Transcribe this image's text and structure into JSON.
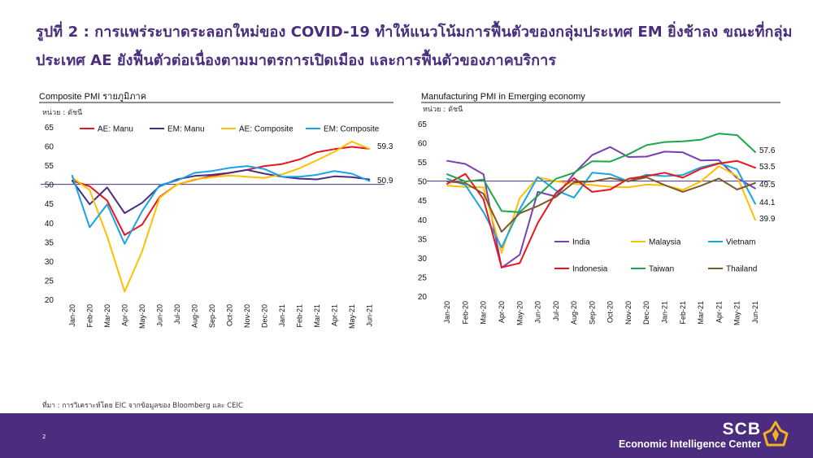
{
  "header": {
    "title_line1": "รูปที่ 2 : การแพร่ระบาดระลอกใหม่ของ COVID-19 ทำให้แนวโน้มการฟื้นตัวของกลุ่มประเทศ EM ยิ่งช้าลง ขณะที่กลุ่ม",
    "title_line2": "ประเทศ AE ยังฟื้นตัวต่อเนื่องตามมาตรการเปิดเมือง และการฟื้นตัวของภาคบริการ"
  },
  "footer": {
    "source_note": "ที่มา : การวิเคราะห์โดย EIC จากข้อมูลของ Bloomberg และ CEIC",
    "page_number": "2",
    "brand_name": "SCB",
    "brand_subtitle": "Economic Intelligence Center",
    "bar_color": "#4b2c7f"
  },
  "chart_data": [
    {
      "type": "line",
      "title": "Composite PMI รายภูมิภาค",
      "unit_label": "หน่วย : ดัชนี",
      "categories": [
        "Jan-20",
        "Feb-20",
        "Mar-20",
        "Apr-20",
        "May-20",
        "Jun-20",
        "Jul-20",
        "Aug-20",
        "Sep-20",
        "Oct-20",
        "Nov-20",
        "Dec-20",
        "Jan-21",
        "Feb-21",
        "Mar-21",
        "Apr-21",
        "May-21",
        "Jun-21"
      ],
      "ylim": [
        20,
        65
      ],
      "yticks": [
        20,
        25,
        30,
        35,
        40,
        45,
        50,
        55,
        60,
        65
      ],
      "reference_line": 50,
      "legend_position": "top",
      "series": [
        {
          "name": "AE: Manu",
          "color": "#e8151e",
          "values": [
            51.0,
            49.5,
            45.8,
            36.8,
            39.5,
            46.7,
            50.0,
            51.2,
            52.2,
            53.0,
            53.8,
            54.8,
            55.3,
            56.5,
            58.4,
            59.2,
            59.8,
            59.3
          ]
        },
        {
          "name": "EM: Manu",
          "color": "#4a2d7e",
          "values": [
            51.0,
            44.8,
            49.2,
            42.5,
            45.2,
            49.5,
            51.3,
            52.2,
            52.5,
            53.0,
            53.8,
            52.8,
            52.0,
            51.5,
            51.3,
            52.1,
            51.9,
            51.3
          ]
        },
        {
          "name": "AE: Composite",
          "color": "#ffc000",
          "values": [
            51.8,
            48.5,
            36.5,
            22.0,
            32.5,
            46.5,
            50.0,
            51.3,
            51.9,
            52.3,
            52.0,
            51.7,
            52.6,
            54.2,
            56.3,
            58.5,
            61.2,
            59.3
          ]
        },
        {
          "name": "EM: Composite",
          "color": "#1aa3e8",
          "values": [
            52.3,
            38.8,
            44.8,
            34.5,
            43.0,
            49.8,
            51.0,
            53.0,
            53.5,
            54.3,
            54.8,
            54.0,
            52.0,
            52.0,
            52.5,
            53.5,
            52.8,
            50.9
          ]
        }
      ],
      "end_labels": [
        "59.3",
        "50.9"
      ]
    },
    {
      "type": "line",
      "title": "Manufacturing PMI in Emerging economy",
      "unit_label": "หน่วย : ดัชนี",
      "categories": [
        "Jan-20",
        "Feb-20",
        "Mar-20",
        "Apr-20",
        "May-20",
        "Jun-20",
        "Jul-20",
        "Aug-20",
        "Sep-20",
        "Oct-20",
        "Nov-20",
        "Dec-20",
        "Jan-21",
        "Feb-21",
        "Mar-21",
        "Apr-21",
        "May-21",
        "Jun-21"
      ],
      "ylim": [
        20,
        65
      ],
      "yticks": [
        20,
        25,
        30,
        35,
        40,
        45,
        50,
        55,
        60,
        65
      ],
      "reference_line": 50,
      "legend_position": "inside-bottom",
      "series": [
        {
          "name": "India",
          "color": "#7a3fb0",
          "values": [
            55.3,
            54.5,
            51.8,
            27.4,
            30.8,
            47.2,
            46.0,
            52.0,
            56.8,
            58.9,
            56.3,
            56.4,
            57.7,
            57.5,
            55.4,
            55.5,
            50.8,
            48.1
          ]
        },
        {
          "name": "Malaysia",
          "color": "#ffc000",
          "values": [
            48.8,
            48.5,
            48.4,
            31.3,
            45.6,
            51.0,
            50.0,
            49.3,
            49.0,
            48.5,
            48.4,
            49.1,
            48.9,
            47.7,
            49.9,
            53.9,
            51.3,
            39.9
          ]
        },
        {
          "name": "Vietnam",
          "color": "#1aa3e8",
          "values": [
            50.6,
            49.0,
            41.9,
            32.7,
            42.7,
            51.1,
            47.6,
            45.7,
            52.2,
            51.8,
            49.9,
            51.7,
            51.3,
            51.6,
            53.6,
            54.7,
            53.1,
            44.1
          ]
        },
        {
          "name": "Indonesia",
          "color": "#e8151e",
          "values": [
            49.3,
            51.9,
            45.3,
            27.5,
            28.6,
            39.1,
            46.9,
            50.8,
            47.2,
            47.8,
            50.6,
            51.3,
            52.2,
            50.9,
            53.2,
            54.6,
            55.3,
            53.5
          ]
        },
        {
          "name": "Taiwan",
          "color": "#1fa64a",
          "values": [
            51.8,
            49.9,
            50.4,
            42.2,
            41.9,
            46.2,
            50.6,
            52.2,
            55.2,
            55.1,
            57.0,
            59.4,
            60.2,
            60.4,
            60.8,
            62.4,
            62.0,
            57.6
          ]
        },
        {
          "name": "Thailand",
          "color": "#7d5a2a",
          "values": [
            49.9,
            49.5,
            46.7,
            36.8,
            41.6,
            43.5,
            45.9,
            49.7,
            49.9,
            50.8,
            50.0,
            51.0,
            49.0,
            47.2,
            48.8,
            50.7,
            47.8,
            49.5
          ]
        }
      ],
      "end_labels": [
        "57.6",
        "53.5",
        "49.5",
        "44.1",
        "39.9"
      ]
    }
  ]
}
